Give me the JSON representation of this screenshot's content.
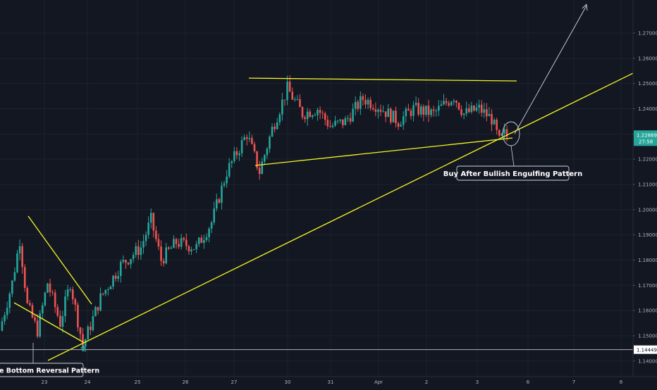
{
  "colors": {
    "background": "#131722",
    "grid": "#1e222d",
    "up": "#26a69a",
    "down": "#ef5350",
    "trendline": "#f5f522",
    "arrow": "#d1d4dc",
    "price_badge": "#26a69a",
    "text": "#b2b5be",
    "support_line": "#c8c8c8"
  },
  "chart_data": {
    "type": "candlestick",
    "ylim": [
      1.1338,
      1.2831
    ],
    "y_ticks": [
      "1.14000",
      "1.15000",
      "1.16000",
      "1.17000",
      "1.18000",
      "1.19000",
      "1.20000",
      "1.21000",
      "1.22000",
      "1.23000",
      "1.24000",
      "1.25000",
      "1.26000",
      "1.27000"
    ],
    "x_ticks": [
      "23",
      "24",
      "25",
      "26",
      "27",
      "30",
      "31",
      "Apr",
      "2",
      "3",
      "6",
      "7",
      "8"
    ],
    "price_label": {
      "value": "1.22889",
      "countdown": "27:58"
    },
    "support_label": "1.14449",
    "annotations": {
      "left": "e Bottom Reversal Pattern",
      "right": "Buy After Bullish Engulfing Pattern"
    },
    "anchors": [
      {
        "i": 0,
        "p": 1.152
      },
      {
        "i": 5,
        "p": 1.171
      },
      {
        "i": 8,
        "p": 1.188
      },
      {
        "i": 11,
        "p": 1.162
      },
      {
        "i": 15,
        "p": 1.152
      },
      {
        "i": 19,
        "p": 1.171
      },
      {
        "i": 24,
        "p": 1.155
      },
      {
        "i": 28,
        "p": 1.171
      },
      {
        "i": 33,
        "p": 1.146
      },
      {
        "i": 40,
        "p": 1.165
      },
      {
        "i": 48,
        "p": 1.178
      },
      {
        "i": 56,
        "p": 1.185
      },
      {
        "i": 60,
        "p": 1.196
      },
      {
        "i": 64,
        "p": 1.18
      },
      {
        "i": 70,
        "p": 1.187
      },
      {
        "i": 78,
        "p": 1.185
      },
      {
        "i": 84,
        "p": 1.195
      },
      {
        "i": 90,
        "p": 1.215
      },
      {
        "i": 98,
        "p": 1.23
      },
      {
        "i": 103,
        "p": 1.215
      },
      {
        "i": 108,
        "p": 1.232
      },
      {
        "i": 114,
        "p": 1.248
      },
      {
        "i": 120,
        "p": 1.238
      },
      {
        "i": 126,
        "p": 1.24
      },
      {
        "i": 131,
        "p": 1.233
      },
      {
        "i": 137,
        "p": 1.235
      },
      {
        "i": 144,
        "p": 1.244
      },
      {
        "i": 150,
        "p": 1.241
      },
      {
        "i": 158,
        "p": 1.235
      },
      {
        "i": 164,
        "p": 1.24
      },
      {
        "i": 172,
        "p": 1.238
      },
      {
        "i": 180,
        "p": 1.245
      },
      {
        "i": 184,
        "p": 1.238
      },
      {
        "i": 190,
        "p": 1.24
      },
      {
        "i": 195,
        "p": 1.236
      },
      {
        "i": 198,
        "p": 1.227
      },
      {
        "i": 200,
        "p": 1.23
      }
    ],
    "n_candles": 201
  }
}
